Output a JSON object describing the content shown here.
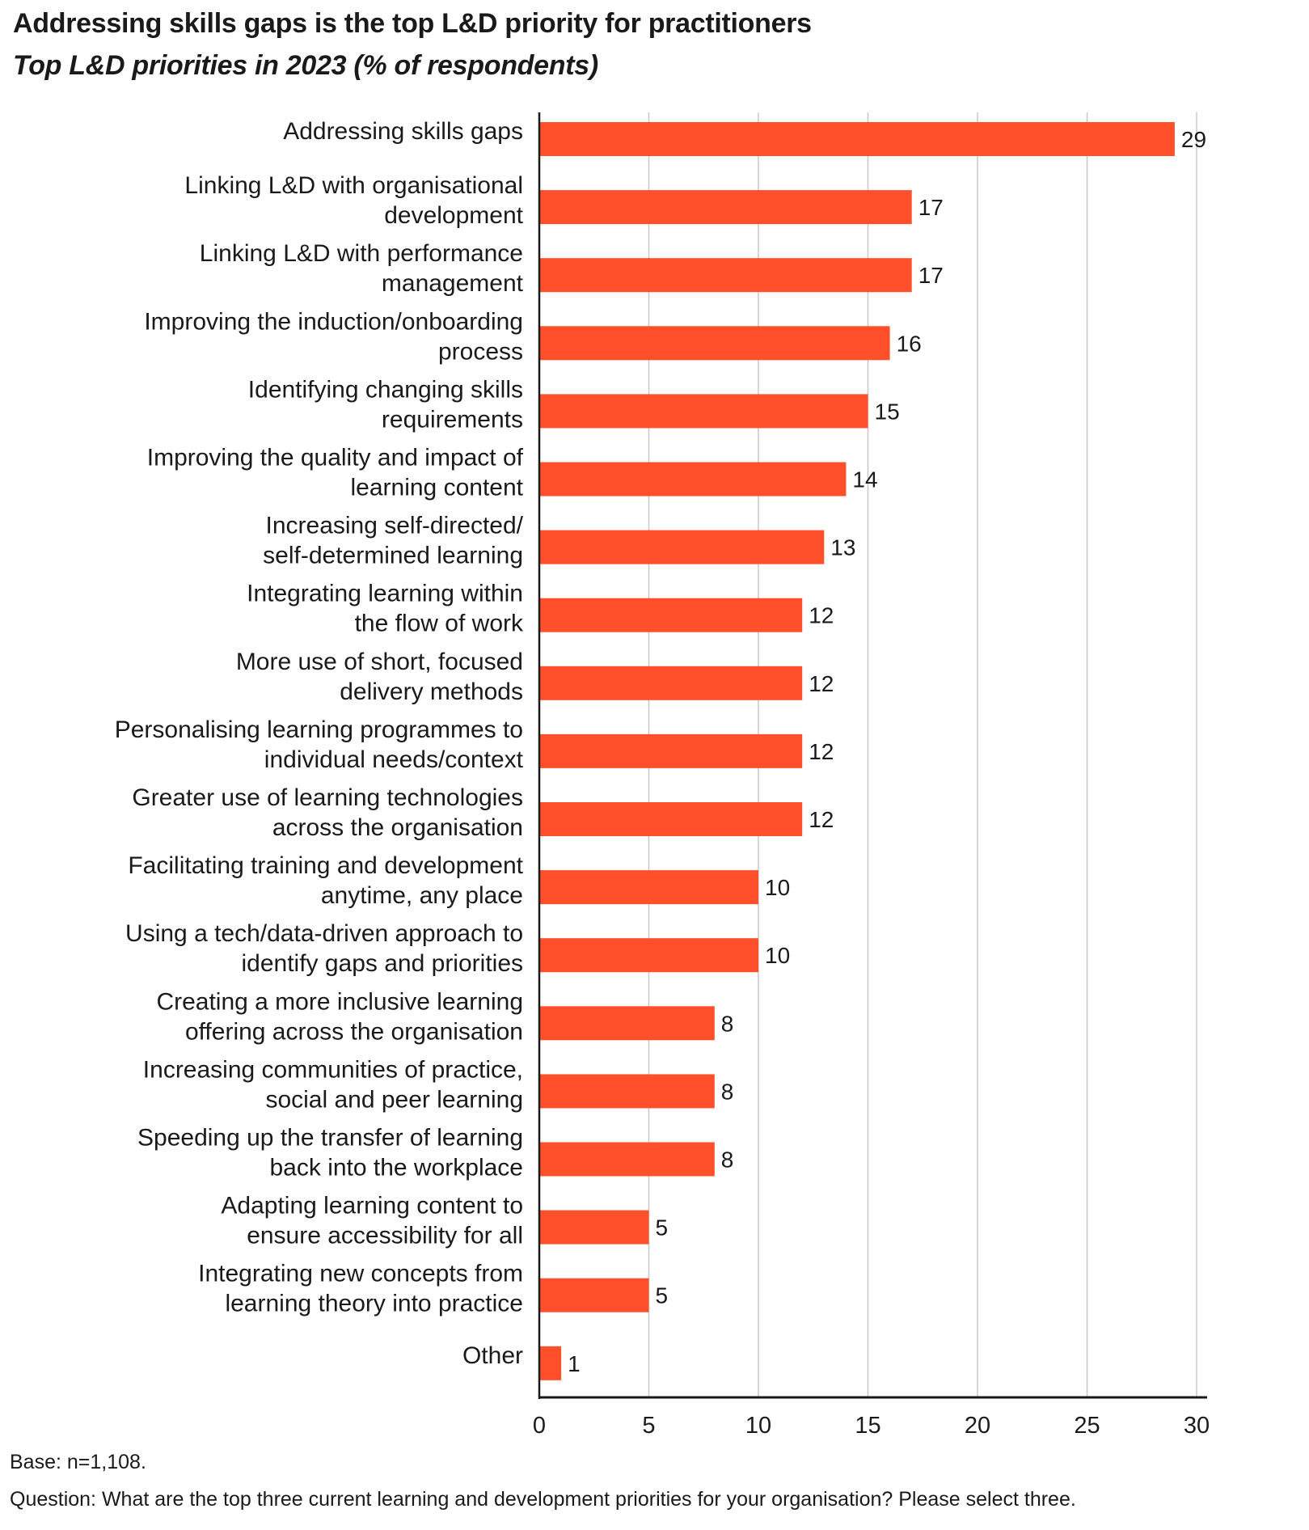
{
  "chart_data": {
    "type": "bar",
    "orientation": "horizontal",
    "title": "Addressing skills gaps is the top L&D priority for practitioners",
    "subtitle": "Top L&D priorities in 2023 (% of respondents)",
    "categories": [
      [
        "Addressing skills gaps"
      ],
      [
        "Linking L&D with organisational",
        "development"
      ],
      [
        "Linking L&D with performance",
        "management"
      ],
      [
        "Improving the induction/onboarding",
        "process"
      ],
      [
        "Identifying changing skills",
        "requirements"
      ],
      [
        "Improving the quality and impact of",
        "learning content"
      ],
      [
        "Increasing self-directed/",
        "self-determined learning"
      ],
      [
        "Integrating learning within",
        "the flow of work"
      ],
      [
        "More use of short, focused",
        "delivery methods"
      ],
      [
        "Personalising learning programmes to",
        "individual needs/context"
      ],
      [
        "Greater use of learning technologies",
        "across the organisation"
      ],
      [
        "Facilitating training and development",
        "anytime, any place"
      ],
      [
        "Using a tech/data-driven approach to",
        "identify gaps and priorities"
      ],
      [
        "Creating a more inclusive learning",
        "offering across the organisation"
      ],
      [
        "Increasing communities of practice,",
        "social and peer learning"
      ],
      [
        "Speeding up the transfer of learning",
        "back into the workplace"
      ],
      [
        "Adapting learning content to",
        "ensure accessibility for all"
      ],
      [
        "Integrating new concepts from",
        "learning theory into practice"
      ],
      [
        "Other"
      ]
    ],
    "values": [
      29,
      17,
      17,
      16,
      15,
      14,
      13,
      12,
      12,
      12,
      12,
      10,
      10,
      8,
      8,
      8,
      5,
      5,
      1
    ],
    "xlim": [
      0,
      30
    ],
    "xticks": [
      0,
      5,
      10,
      15,
      20,
      25,
      30
    ],
    "grid": true,
    "bar_color": "#FF4F2B",
    "footnotes": {
      "base": "Base: n=1,108.",
      "question": "Question: What are the top three current learning and development priorities for your organisation? Please select three."
    }
  }
}
